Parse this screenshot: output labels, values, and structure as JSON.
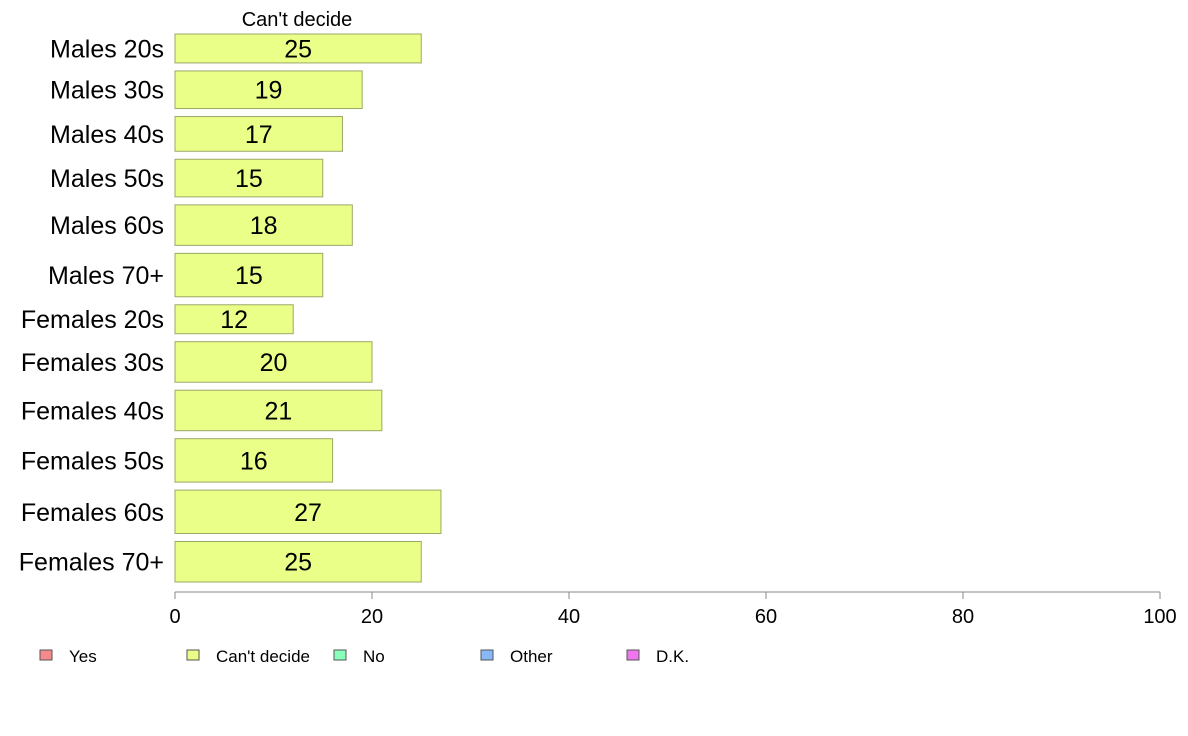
{
  "chart_data": {
    "type": "bar",
    "orientation": "horizontal",
    "title": "Can't decide",
    "xlabel": "",
    "ylabel": "",
    "xlim": [
      0,
      100
    ],
    "xticks": [
      0,
      20,
      40,
      60,
      80,
      100
    ],
    "grid": false,
    "legend_position": "bottom",
    "categories": [
      "Males 20s",
      "Males 30s",
      "Males 40s",
      "Males 50s",
      "Males 60s",
      "Males 70+",
      "Females 20s",
      "Females 30s",
      "Females 40s",
      "Females 50s",
      "Females 60s",
      "Females 70+"
    ],
    "series": [
      {
        "name": "Can't decide",
        "values": [
          25,
          19,
          17,
          15,
          18,
          15,
          12,
          20,
          21,
          16,
          27,
          25
        ],
        "color": "#eaff88"
      }
    ],
    "relative_band_weights": [
      1.0,
      1.3,
      1.2,
      1.3,
      1.4,
      1.5,
      1.0,
      1.4,
      1.4,
      1.5,
      1.5,
      1.4
    ],
    "legend": [
      {
        "label": "Yes",
        "color": "#f58a8a"
      },
      {
        "label": "Can't decide",
        "color": "#eaff88"
      },
      {
        "label": "No",
        "color": "#88ffbb"
      },
      {
        "label": "Other",
        "color": "#88b8f5"
      },
      {
        "label": "D.K.",
        "color": "#ee77ee"
      }
    ]
  }
}
